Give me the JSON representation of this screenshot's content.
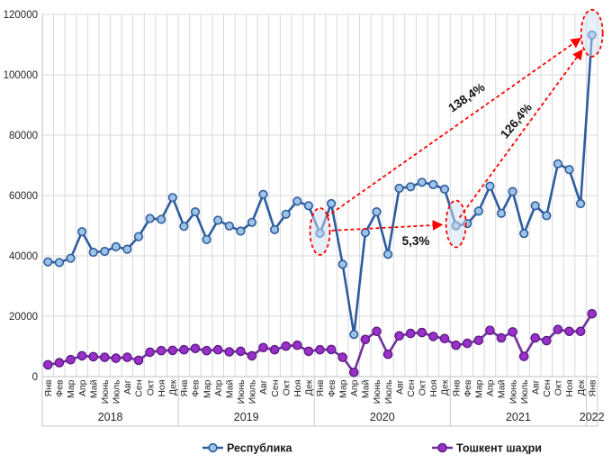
{
  "chart_data": {
    "type": "line",
    "title": "",
    "xlabel": "",
    "ylabel": "",
    "ylim": [
      0,
      120000
    ],
    "yticks": [
      0,
      20000,
      40000,
      60000,
      80000,
      100000,
      120000
    ],
    "grid": true,
    "legend_position": "bottom",
    "month_labels": [
      "Янв",
      "Фев",
      "Мар",
      "Апр",
      "Май",
      "Июнь",
      "Июль",
      "Авг",
      "Сен",
      "Окт",
      "Ноя",
      "Дек"
    ],
    "year_groups": [
      {
        "year": "2018",
        "months": 12
      },
      {
        "year": "2019",
        "months": 12
      },
      {
        "year": "2020",
        "months": 12
      },
      {
        "year": "2021",
        "months": 12
      },
      {
        "year": "2022",
        "months": 1
      }
    ],
    "series": [
      {
        "name": "Республика",
        "line_color": "#2E5C9E",
        "marker_fill": "#9DC3E6",
        "marker_stroke": "#2E5C9E",
        "values": [
          38000,
          37800,
          39200,
          48000,
          41200,
          41500,
          43000,
          42200,
          46400,
          52400,
          52100,
          59300,
          49800,
          54600,
          45400,
          51800,
          49900,
          48200,
          51100,
          60400,
          48700,
          53800,
          58100,
          56600,
          47500,
          57300,
          37200,
          14000,
          47700,
          54600,
          40500,
          62400,
          62900,
          64400,
          63600,
          62100,
          50000,
          50700,
          54800,
          63100,
          54100,
          61300,
          47400,
          56600,
          53300,
          70500,
          68600,
          57300,
          113200
        ]
      },
      {
        "name": "Тошкент шаҳри",
        "line_color": "#7030A0",
        "marker_fill": "#9B2FC9",
        "marker_stroke": "#5C1C85",
        "values": [
          3900,
          4600,
          5600,
          6900,
          6600,
          6400,
          6100,
          6400,
          5400,
          8100,
          8600,
          8700,
          8900,
          9300,
          8600,
          8900,
          8200,
          8400,
          6900,
          9600,
          8900,
          10100,
          10400,
          8400,
          8900,
          9000,
          6400,
          1400,
          12300,
          15000,
          7400,
          13500,
          14300,
          14600,
          13300,
          12600,
          10400,
          11000,
          12000,
          15300,
          12800,
          14800,
          6700,
          12800,
          11900,
          15600,
          15000,
          15000,
          20800
        ]
      }
    ],
    "annotations": {
      "accent_color": "#FF0000",
      "highlight_fill": "#CFE2F3",
      "circled_point_indices": [
        24,
        36,
        48
      ],
      "arrows": [
        {
          "label": "5,3%",
          "from_index": 24,
          "to_index": 36
        },
        {
          "label": "138,4%",
          "from_index": 24,
          "to_index": 48
        },
        {
          "label": "126,4%",
          "from_index": 36,
          "to_index": 48
        }
      ]
    }
  }
}
